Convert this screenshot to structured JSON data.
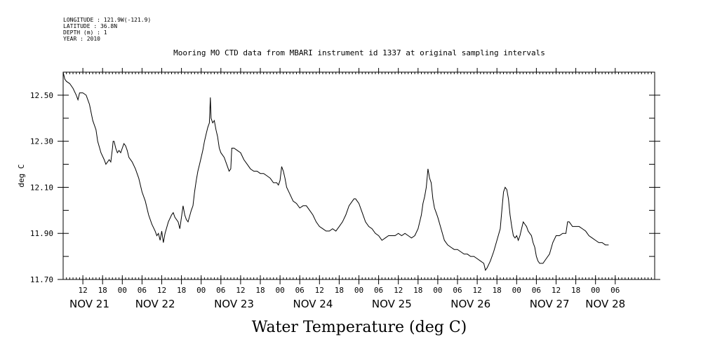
{
  "meta": {
    "longitude": "LONGITUDE : 121.9W(-121.9)",
    "latitude": "LATITUDE : 36.8N",
    "depth": "DEPTH (m) : 1",
    "year": "YEAR : 2010"
  },
  "chart_data": {
    "type": "line",
    "title": "Mooring MO CTD data from MBARI instrument id 1337 at original sampling intervals",
    "xlabel": "Water Temperature (deg C)",
    "ylabel": "deg C",
    "xlim_hours": [
      0,
      180
    ],
    "ylim": [
      11.7,
      12.6
    ],
    "yticks": [
      11.7,
      11.9,
      12.1,
      12.3,
      12.5
    ],
    "ytick_labels": [
      "11.70",
      "11.90",
      "12.10",
      "12.30",
      "12.50"
    ],
    "hour_ticks": [
      {
        "h": 6,
        "label": "12"
      },
      {
        "h": 12,
        "label": "18"
      },
      {
        "h": 18,
        "label": "00"
      },
      {
        "h": 24,
        "label": "06"
      },
      {
        "h": 30,
        "label": "12"
      },
      {
        "h": 36,
        "label": "18"
      },
      {
        "h": 42,
        "label": "00"
      },
      {
        "h": 48,
        "label": "06"
      },
      {
        "h": 54,
        "label": "12"
      },
      {
        "h": 60,
        "label": "18"
      },
      {
        "h": 66,
        "label": "00"
      },
      {
        "h": 72,
        "label": "06"
      },
      {
        "h": 78,
        "label": "12"
      },
      {
        "h": 84,
        "label": "18"
      },
      {
        "h": 90,
        "label": "00"
      },
      {
        "h": 96,
        "label": "06"
      },
      {
        "h": 102,
        "label": "12"
      },
      {
        "h": 108,
        "label": "18"
      },
      {
        "h": 114,
        "label": "00"
      },
      {
        "h": 120,
        "label": "06"
      },
      {
        "h": 126,
        "label": "12"
      },
      {
        "h": 132,
        "label": "18"
      },
      {
        "h": 138,
        "label": "00"
      },
      {
        "h": 144,
        "label": "06"
      },
      {
        "h": 150,
        "label": "12"
      },
      {
        "h": 156,
        "label": "18"
      },
      {
        "h": 162,
        "label": "00"
      },
      {
        "h": 168,
        "label": "06"
      }
    ],
    "day_labels": [
      {
        "h": 8,
        "label": "NOV 21"
      },
      {
        "h": 28,
        "label": "NOV 22"
      },
      {
        "h": 52,
        "label": "NOV 23"
      },
      {
        "h": 76,
        "label": "NOV 24"
      },
      {
        "h": 100,
        "label": "NOV 25"
      },
      {
        "h": 124,
        "label": "NOV 26"
      },
      {
        "h": 148,
        "label": "NOV 27"
      },
      {
        "h": 165,
        "label": "NOV 28"
      }
    ],
    "series": [
      {
        "color": "#000000",
        "points": [
          [
            0.0,
            12.6
          ],
          [
            0.5,
            12.57
          ],
          [
            1.0,
            12.56
          ],
          [
            2.0,
            12.55
          ],
          [
            3.0,
            12.53
          ],
          [
            4.0,
            12.5
          ],
          [
            4.5,
            12.48
          ],
          [
            5.0,
            12.51
          ],
          [
            6.0,
            12.51
          ],
          [
            7.0,
            12.5
          ],
          [
            8.0,
            12.46
          ],
          [
            9.0,
            12.39
          ],
          [
            10.0,
            12.35
          ],
          [
            10.5,
            12.3
          ],
          [
            11.5,
            12.25
          ],
          [
            12.5,
            12.22
          ],
          [
            13.0,
            12.2
          ],
          [
            14.0,
            12.22
          ],
          [
            14.5,
            12.21
          ],
          [
            15.0,
            12.27
          ],
          [
            15.2,
            12.3
          ],
          [
            15.5,
            12.3
          ],
          [
            16.0,
            12.27
          ],
          [
            16.5,
            12.25
          ],
          [
            17.0,
            12.26
          ],
          [
            17.5,
            12.25
          ],
          [
            18.0,
            12.27
          ],
          [
            18.5,
            12.29
          ],
          [
            19.0,
            12.28
          ],
          [
            19.5,
            12.26
          ],
          [
            20.0,
            12.23
          ],
          [
            21.0,
            12.21
          ],
          [
            22.0,
            12.18
          ],
          [
            23.0,
            12.14
          ],
          [
            24.0,
            12.08
          ],
          [
            25.0,
            12.04
          ],
          [
            26.0,
            11.98
          ],
          [
            27.0,
            11.94
          ],
          [
            28.0,
            11.91
          ],
          [
            28.5,
            11.89
          ],
          [
            29.0,
            11.9
          ],
          [
            29.5,
            11.87
          ],
          [
            30.0,
            11.91
          ],
          [
            30.5,
            11.86
          ],
          [
            31.0,
            11.9
          ],
          [
            32.0,
            11.95
          ],
          [
            33.0,
            11.98
          ],
          [
            33.5,
            11.99
          ],
          [
            34.0,
            11.97
          ],
          [
            35.0,
            11.95
          ],
          [
            35.5,
            11.92
          ],
          [
            36.0,
            11.97
          ],
          [
            36.5,
            12.02
          ],
          [
            37.0,
            11.98
          ],
          [
            37.5,
            11.96
          ],
          [
            38.0,
            11.95
          ],
          [
            39.0,
            12.0
          ],
          [
            39.5,
            12.02
          ],
          [
            40.0,
            12.08
          ],
          [
            40.5,
            12.13
          ],
          [
            41.0,
            12.17
          ],
          [
            41.5,
            12.2
          ],
          [
            42.0,
            12.23
          ],
          [
            42.5,
            12.26
          ],
          [
            43.0,
            12.3
          ],
          [
            43.5,
            12.33
          ],
          [
            44.0,
            12.36
          ],
          [
            44.5,
            12.38
          ],
          [
            44.8,
            12.49
          ],
          [
            45.0,
            12.4
          ],
          [
            45.5,
            12.38
          ],
          [
            46.0,
            12.39
          ],
          [
            46.5,
            12.35
          ],
          [
            47.0,
            12.32
          ],
          [
            47.5,
            12.27
          ],
          [
            48.0,
            12.25
          ],
          [
            49.0,
            12.23
          ],
          [
            50.0,
            12.19
          ],
          [
            50.5,
            12.17
          ],
          [
            51.0,
            12.18
          ],
          [
            51.3,
            12.27
          ],
          [
            52.0,
            12.27
          ],
          [
            53.0,
            12.26
          ],
          [
            54.0,
            12.25
          ],
          [
            55.0,
            12.22
          ],
          [
            56.0,
            12.2
          ],
          [
            57.0,
            12.18
          ],
          [
            58.0,
            12.17
          ],
          [
            59.0,
            12.17
          ],
          [
            60.0,
            12.16
          ],
          [
            61.0,
            12.16
          ],
          [
            62.0,
            12.15
          ],
          [
            63.0,
            12.14
          ],
          [
            64.0,
            12.12
          ],
          [
            65.0,
            12.12
          ],
          [
            65.5,
            12.11
          ],
          [
            66.0,
            12.13
          ],
          [
            66.5,
            12.19
          ],
          [
            67.0,
            12.17
          ],
          [
            67.5,
            12.14
          ],
          [
            68.0,
            12.1
          ],
          [
            69.0,
            12.07
          ],
          [
            70.0,
            12.04
          ],
          [
            71.0,
            12.03
          ],
          [
            72.0,
            12.01
          ],
          [
            73.0,
            12.02
          ],
          [
            74.0,
            12.02
          ],
          [
            75.0,
            12.0
          ],
          [
            76.0,
            11.98
          ],
          [
            77.0,
            11.95
          ],
          [
            78.0,
            11.93
          ],
          [
            79.0,
            11.92
          ],
          [
            80.0,
            11.91
          ],
          [
            81.0,
            11.91
          ],
          [
            82.0,
            11.92
          ],
          [
            83.0,
            11.91
          ],
          [
            84.0,
            11.93
          ],
          [
            85.0,
            11.95
          ],
          [
            86.0,
            11.98
          ],
          [
            87.0,
            12.02
          ],
          [
            88.0,
            12.04
          ],
          [
            88.5,
            12.05
          ],
          [
            89.0,
            12.05
          ],
          [
            90.0,
            12.03
          ],
          [
            91.0,
            11.99
          ],
          [
            92.0,
            11.95
          ],
          [
            93.0,
            11.93
          ],
          [
            94.0,
            11.92
          ],
          [
            95.0,
            11.9
          ],
          [
            96.0,
            11.89
          ],
          [
            97.0,
            11.87
          ],
          [
            98.0,
            11.88
          ],
          [
            99.0,
            11.89
          ],
          [
            100.0,
            11.89
          ],
          [
            101.0,
            11.89
          ],
          [
            102.0,
            11.9
          ],
          [
            103.0,
            11.89
          ],
          [
            104.0,
            11.9
          ],
          [
            105.0,
            11.89
          ],
          [
            106.0,
            11.88
          ],
          [
            107.0,
            11.89
          ],
          [
            108.0,
            11.92
          ],
          [
            109.0,
            11.98
          ],
          [
            109.5,
            12.03
          ],
          [
            110.0,
            12.06
          ],
          [
            110.5,
            12.1
          ],
          [
            111.0,
            12.18
          ],
          [
            111.5,
            12.14
          ],
          [
            112.0,
            12.12
          ],
          [
            112.5,
            12.05
          ],
          [
            113.0,
            12.01
          ],
          [
            113.5,
            11.99
          ],
          [
            114.0,
            11.97
          ],
          [
            115.0,
            11.92
          ],
          [
            116.0,
            11.87
          ],
          [
            117.0,
            11.85
          ],
          [
            118.0,
            11.84
          ],
          [
            119.0,
            11.83
          ],
          [
            120.0,
            11.83
          ],
          [
            121.0,
            11.82
          ],
          [
            122.0,
            11.81
          ],
          [
            123.0,
            11.81
          ],
          [
            124.0,
            11.8
          ],
          [
            125.0,
            11.8
          ],
          [
            126.0,
            11.79
          ],
          [
            127.0,
            11.78
          ],
          [
            128.0,
            11.77
          ],
          [
            128.5,
            11.74
          ],
          [
            129.0,
            11.75
          ],
          [
            130.0,
            11.78
          ],
          [
            131.0,
            11.82
          ],
          [
            132.0,
            11.87
          ],
          [
            133.0,
            11.92
          ],
          [
            133.5,
            12.0
          ],
          [
            134.0,
            12.08
          ],
          [
            134.5,
            12.1
          ],
          [
            135.0,
            12.09
          ],
          [
            135.5,
            12.05
          ],
          [
            136.0,
            11.98
          ],
          [
            136.5,
            11.93
          ],
          [
            137.0,
            11.89
          ],
          [
            137.5,
            11.88
          ],
          [
            138.0,
            11.89
          ],
          [
            138.5,
            11.87
          ],
          [
            139.0,
            11.89
          ],
          [
            139.5,
            11.92
          ],
          [
            140.0,
            11.95
          ],
          [
            140.5,
            11.94
          ],
          [
            141.0,
            11.93
          ],
          [
            141.5,
            11.91
          ],
          [
            142.0,
            11.9
          ],
          [
            142.5,
            11.89
          ],
          [
            143.0,
            11.86
          ],
          [
            143.5,
            11.84
          ],
          [
            144.0,
            11.8
          ],
          [
            144.5,
            11.78
          ],
          [
            145.0,
            11.77
          ],
          [
            146.0,
            11.77
          ],
          [
            147.0,
            11.79
          ],
          [
            148.0,
            11.81
          ],
          [
            149.0,
            11.86
          ],
          [
            150.0,
            11.89
          ],
          [
            151.0,
            11.89
          ],
          [
            152.0,
            11.9
          ],
          [
            153.0,
            11.9
          ],
          [
            153.5,
            11.95
          ],
          [
            154.0,
            11.95
          ],
          [
            155.0,
            11.93
          ],
          [
            156.0,
            11.93
          ],
          [
            157.0,
            11.93
          ],
          [
            158.0,
            11.92
          ],
          [
            159.0,
            11.91
          ],
          [
            160.0,
            11.89
          ],
          [
            161.0,
            11.88
          ],
          [
            162.0,
            11.87
          ],
          [
            163.0,
            11.86
          ],
          [
            164.0,
            11.86
          ],
          [
            165.0,
            11.85
          ],
          [
            166.0,
            11.85
          ]
        ]
      }
    ]
  }
}
